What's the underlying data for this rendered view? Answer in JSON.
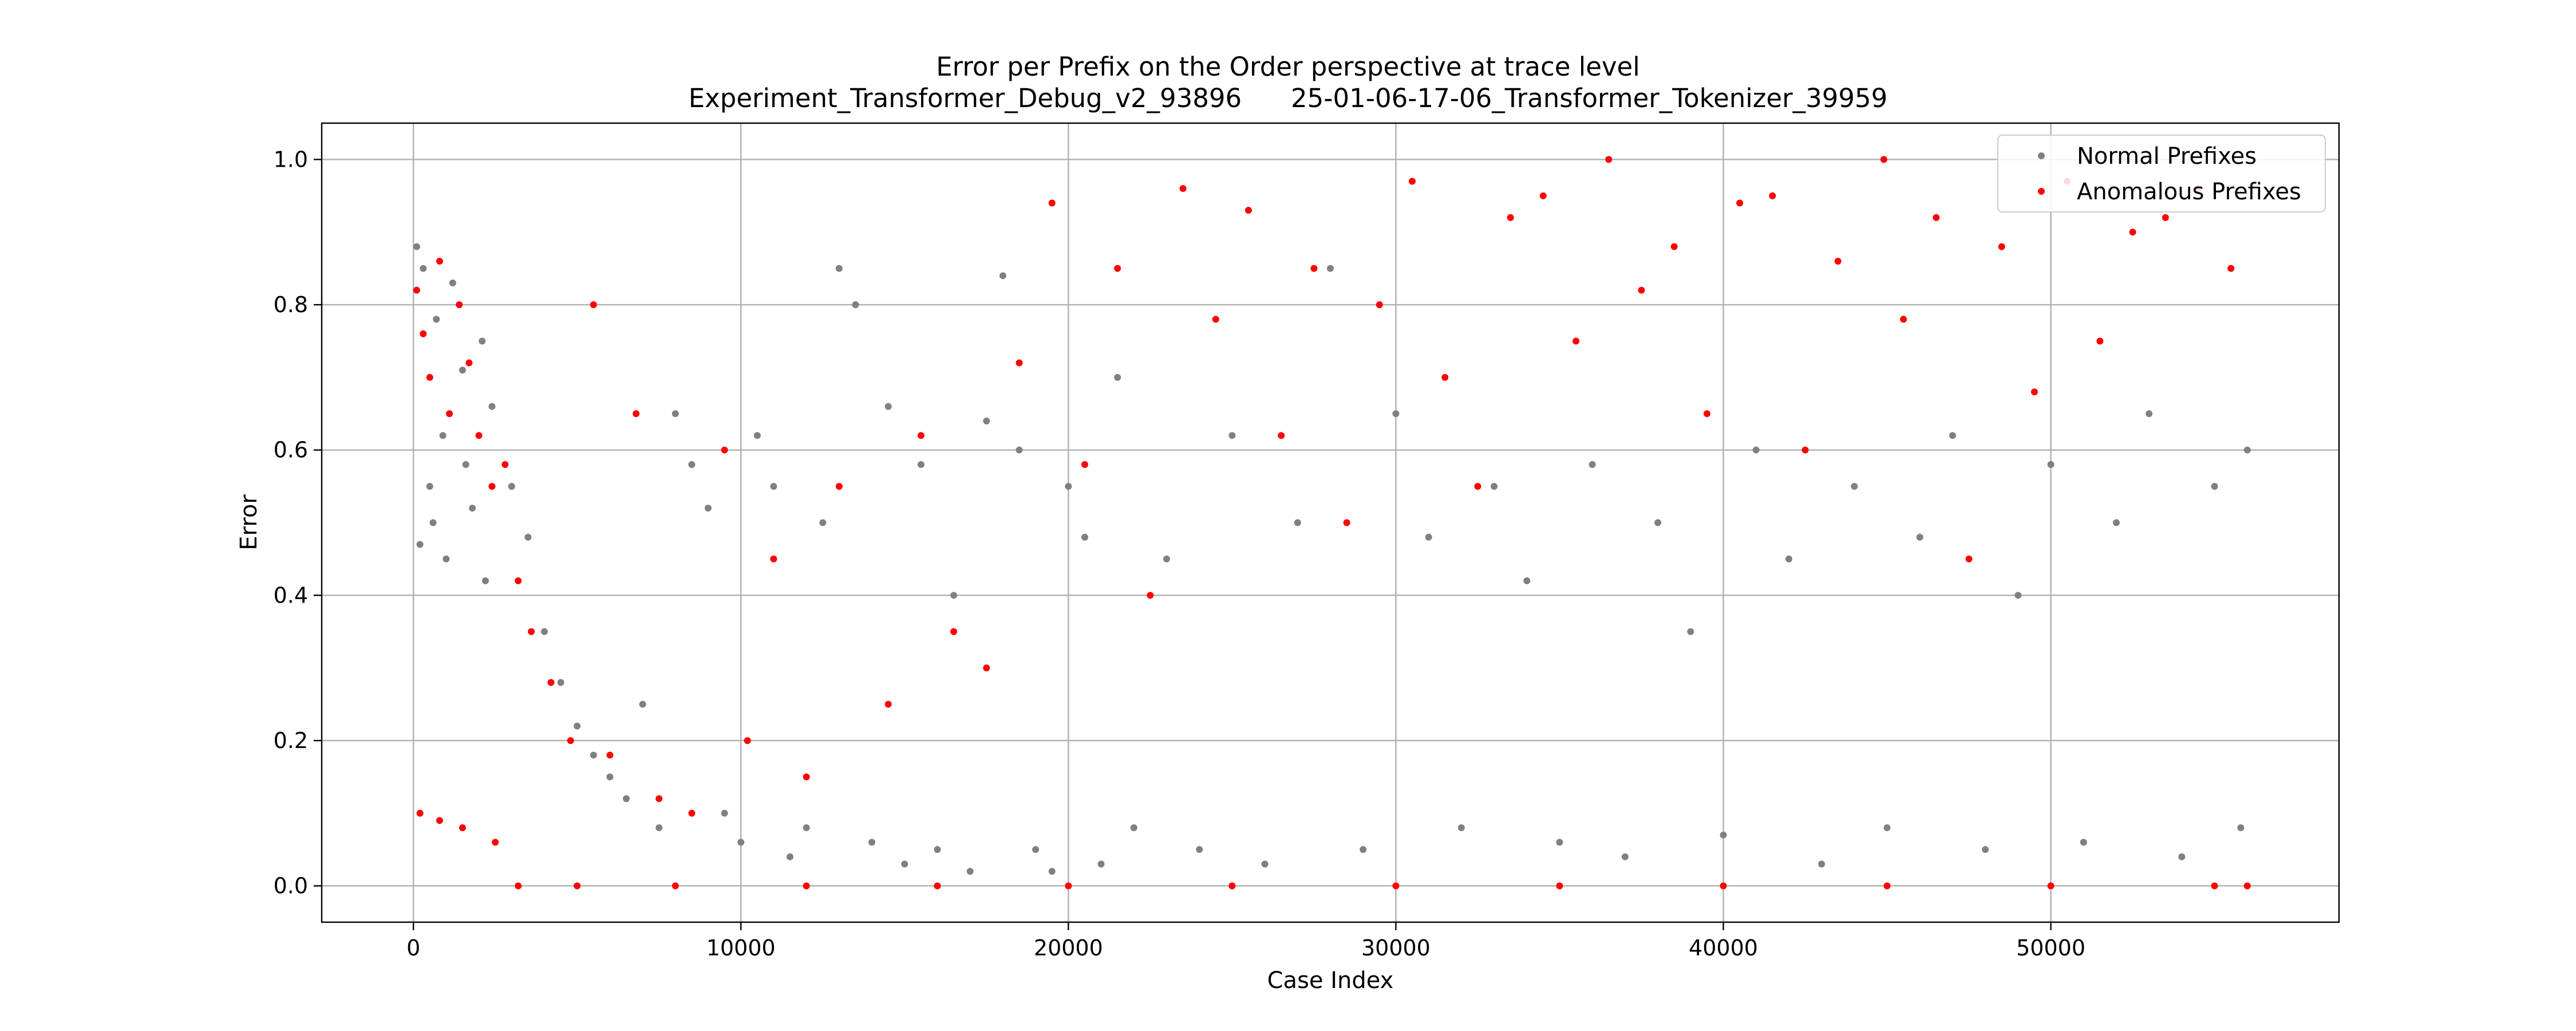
{
  "chart_data": {
    "type": "scatter",
    "title": "Error per Prefix on the Order perspective at trace level",
    "subtitle": "Experiment_Transformer_Debug_v2_93896      25-01-06-17-06_Transformer_Tokenizer_39959",
    "xlabel": "Case Index",
    "ylabel": "Error",
    "xlim": [
      -2800,
      58800
    ],
    "ylim": [
      -0.05,
      1.05
    ],
    "xticks": [
      0,
      10000,
      20000,
      30000,
      40000,
      50000
    ],
    "xtick_labels": [
      "0",
      "10000",
      "20000",
      "30000",
      "40000",
      "50000"
    ],
    "yticks": [
      0.0,
      0.2,
      0.4,
      0.6,
      0.8,
      1.0
    ],
    "ytick_labels": [
      "0.0",
      "0.2",
      "0.4",
      "0.6",
      "0.8",
      "1.0"
    ],
    "grid": true,
    "legend_position": "top-right",
    "series": [
      {
        "name": "Normal Prefixes",
        "color": "#808080",
        "x_range": [
          0,
          56000
        ],
        "summary": "Dense early cluster at error 0.45-0.9 (case index 0-2500); decaying band from about 0.6 to 0.05 between 2500 and 25000; after that points spread across 0.0-0.9 with a dense band near 0.0-0.1 and a mid band around 0.4-0.6",
        "points": [
          [
            100,
            0.88
          ],
          [
            300,
            0.85
          ],
          [
            500,
            0.55
          ],
          [
            700,
            0.78
          ],
          [
            900,
            0.62
          ],
          [
            1200,
            0.83
          ],
          [
            1500,
            0.71
          ],
          [
            1800,
            0.52
          ],
          [
            2100,
            0.75
          ],
          [
            2400,
            0.66
          ],
          [
            200,
            0.47
          ],
          [
            600,
            0.5
          ],
          [
            1000,
            0.45
          ],
          [
            1600,
            0.58
          ],
          [
            2200,
            0.42
          ],
          [
            3000,
            0.55
          ],
          [
            3500,
            0.48
          ],
          [
            4000,
            0.35
          ],
          [
            4500,
            0.28
          ],
          [
            5000,
            0.22
          ],
          [
            5500,
            0.18
          ],
          [
            6000,
            0.15
          ],
          [
            6500,
            0.12
          ],
          [
            7000,
            0.25
          ],
          [
            7500,
            0.08
          ],
          [
            8000,
            0.65
          ],
          [
            8500,
            0.58
          ],
          [
            9000,
            0.52
          ],
          [
            9500,
            0.1
          ],
          [
            10000,
            0.06
          ],
          [
            10500,
            0.62
          ],
          [
            11000,
            0.55
          ],
          [
            11500,
            0.04
          ],
          [
            12000,
            0.08
          ],
          [
            12500,
            0.5
          ],
          [
            13000,
            0.85
          ],
          [
            13500,
            0.8
          ],
          [
            14000,
            0.06
          ],
          [
            14500,
            0.66
          ],
          [
            15000,
            0.03
          ],
          [
            15500,
            0.58
          ],
          [
            16000,
            0.05
          ],
          [
            16500,
            0.4
          ],
          [
            17000,
            0.02
          ],
          [
            17500,
            0.64
          ],
          [
            18000,
            0.84
          ],
          [
            18500,
            0.6
          ],
          [
            19000,
            0.05
          ],
          [
            19500,
            0.02
          ],
          [
            20000,
            0.55
          ],
          [
            20500,
            0.48
          ],
          [
            21000,
            0.03
          ],
          [
            21500,
            0.7
          ],
          [
            22000,
            0.08
          ],
          [
            23000,
            0.45
          ],
          [
            24000,
            0.05
          ],
          [
            25000,
            0.62
          ],
          [
            26000,
            0.03
          ],
          [
            27000,
            0.5
          ],
          [
            28000,
            0.85
          ],
          [
            29000,
            0.05
          ],
          [
            30000,
            0.65
          ],
          [
            31000,
            0.48
          ],
          [
            32000,
            0.08
          ],
          [
            33000,
            0.55
          ],
          [
            34000,
            0.42
          ],
          [
            35000,
            0.06
          ],
          [
            36000,
            0.58
          ],
          [
            37000,
            0.04
          ],
          [
            38000,
            0.5
          ],
          [
            39000,
            0.35
          ],
          [
            40000,
            0.07
          ],
          [
            41000,
            0.6
          ],
          [
            42000,
            0.45
          ],
          [
            43000,
            0.03
          ],
          [
            44000,
            0.55
          ],
          [
            45000,
            0.08
          ],
          [
            46000,
            0.48
          ],
          [
            47000,
            0.62
          ],
          [
            48000,
            0.05
          ],
          [
            49000,
            0.4
          ],
          [
            50000,
            0.58
          ],
          [
            51000,
            0.06
          ],
          [
            52000,
            0.5
          ],
          [
            53000,
            0.65
          ],
          [
            54000,
            0.04
          ],
          [
            55000,
            0.55
          ],
          [
            55800,
            0.08
          ],
          [
            56000,
            0.6
          ]
        ]
      },
      {
        "name": "Anomalous Prefixes",
        "color": "#ff0000",
        "x_range": [
          0,
          56000
        ],
        "summary": "Early cluster at error 0.6-0.9 and about 0.1 (case index 0-2500); many points at exactly 0.0 from about 3000 onward; scattered diagonal streaks rising toward 0.8-1.0 across the whole range",
        "points": [
          [
            100,
            0.82
          ],
          [
            300,
            0.76
          ],
          [
            500,
            0.7
          ],
          [
            800,
            0.86
          ],
          [
            1100,
            0.65
          ],
          [
            1400,
            0.8
          ],
          [
            1700,
            0.72
          ],
          [
            2000,
            0.62
          ],
          [
            2400,
            0.55
          ],
          [
            2800,
            0.58
          ],
          [
            200,
            0.1
          ],
          [
            800,
            0.09
          ],
          [
            1500,
            0.08
          ],
          [
            2500,
            0.06
          ],
          [
            3200,
            0.42
          ],
          [
            3600,
            0.35
          ],
          [
            4200,
            0.28
          ],
          [
            4800,
            0.2
          ],
          [
            5500,
            0.8
          ],
          [
            6000,
            0.18
          ],
          [
            6800,
            0.65
          ],
          [
            7500,
            0.12
          ],
          [
            8500,
            0.1
          ],
          [
            9500,
            0.6
          ],
          [
            10200,
            0.2
          ],
          [
            11000,
            0.45
          ],
          [
            12000,
            0.15
          ],
          [
            13000,
            0.55
          ],
          [
            14500,
            0.25
          ],
          [
            15500,
            0.62
          ],
          [
            16500,
            0.35
          ],
          [
            17500,
            0.3
          ],
          [
            18500,
            0.72
          ],
          [
            19500,
            0.94
          ],
          [
            20500,
            0.58
          ],
          [
            21500,
            0.85
          ],
          [
            22500,
            0.4
          ],
          [
            23500,
            0.96
          ],
          [
            24500,
            0.78
          ],
          [
            25500,
            0.93
          ],
          [
            26500,
            0.62
          ],
          [
            27500,
            0.85
          ],
          [
            28500,
            0.5
          ],
          [
            29500,
            0.8
          ],
          [
            30500,
            0.97
          ],
          [
            31500,
            0.7
          ],
          [
            32500,
            0.55
          ],
          [
            33500,
            0.92
          ],
          [
            34500,
            0.95
          ],
          [
            35500,
            0.75
          ],
          [
            36500,
            1.0
          ],
          [
            37500,
            0.82
          ],
          [
            38500,
            0.88
          ],
          [
            39500,
            0.65
          ],
          [
            40500,
            0.94
          ],
          [
            41500,
            0.95
          ],
          [
            42500,
            0.6
          ],
          [
            43500,
            0.86
          ],
          [
            44900,
            1.0
          ],
          [
            45500,
            0.78
          ],
          [
            46500,
            0.92
          ],
          [
            47500,
            0.45
          ],
          [
            48500,
            0.88
          ],
          [
            49500,
            0.68
          ],
          [
            50500,
            0.97
          ],
          [
            51500,
            0.75
          ],
          [
            52500,
            0.9
          ],
          [
            53500,
            0.92
          ],
          [
            54500,
            0.96
          ],
          [
            55500,
            0.85
          ],
          [
            3200,
            0.0
          ],
          [
            5000,
            0.0
          ],
          [
            8000,
            0.0
          ],
          [
            12000,
            0.0
          ],
          [
            16000,
            0.0
          ],
          [
            20000,
            0.0
          ],
          [
            25000,
            0.0
          ],
          [
            30000,
            0.0
          ],
          [
            35000,
            0.0
          ],
          [
            40000,
            0.0
          ],
          [
            45000,
            0.0
          ],
          [
            50000,
            0.0
          ],
          [
            55000,
            0.0
          ],
          [
            56000,
            0.0
          ]
        ]
      }
    ]
  }
}
